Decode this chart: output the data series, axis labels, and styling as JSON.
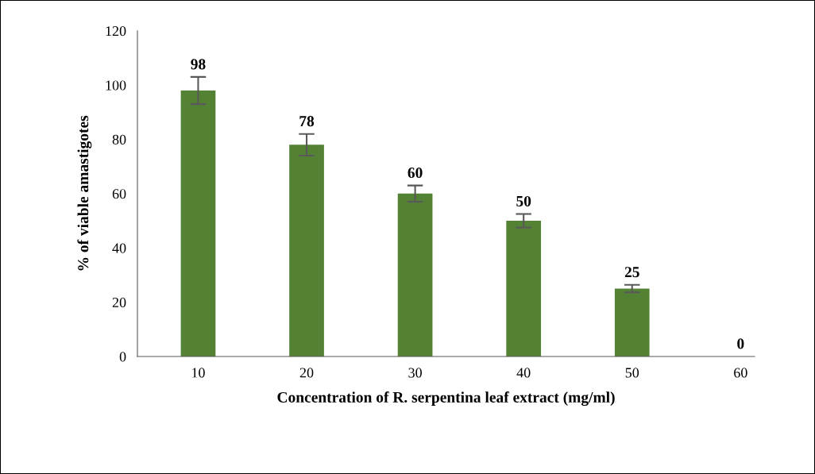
{
  "chart_data": {
    "type": "bar",
    "categories": [
      "10",
      "20",
      "30",
      "40",
      "50",
      "60"
    ],
    "values": [
      98,
      78,
      60,
      50,
      25,
      0
    ],
    "errors": [
      5,
      4,
      3,
      2.5,
      1.4,
      null
    ],
    "color": "#548235",
    "xlabel": "Concentration of R. serpentina leaf extract (mg/ml)",
    "ylabel": "% of viable amastigotes",
    "ylim": [
      0,
      120
    ],
    "yticks": [
      0,
      20,
      40,
      60,
      80,
      100,
      120
    ],
    "grid": false,
    "data_labels": true
  }
}
